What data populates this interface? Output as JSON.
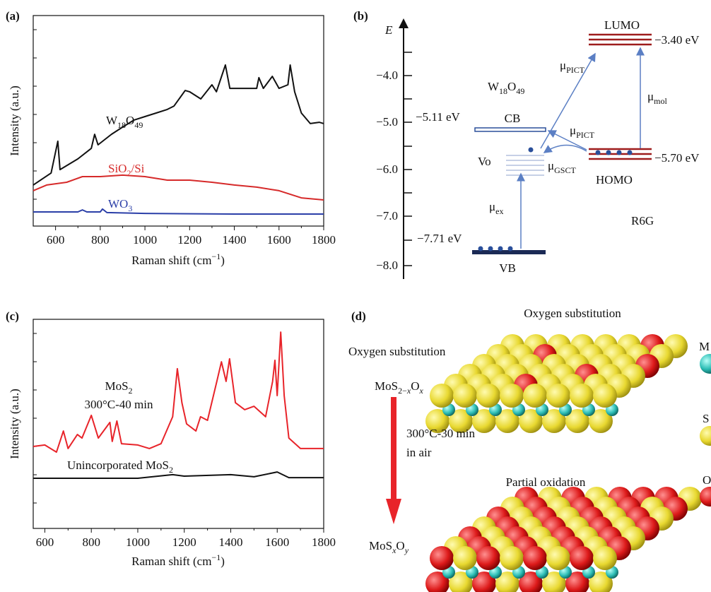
{
  "figure": {
    "panel_labels": [
      "(a)",
      "(b)",
      "(c)",
      "(d)"
    ]
  },
  "chart_data": [
    {
      "type": "line",
      "x_label": [
        "Raman shift (cm",
        "−1",
        ")"
      ],
      "y_label": "Intensity (a.u.)",
      "xlim": [
        500,
        1800
      ],
      "xticks": [
        600,
        800,
        1000,
        1200,
        1400,
        1600,
        1800
      ],
      "ylim": [
        0,
        100
      ],
      "series": [
        {
          "name": [
            "W",
            "18",
            "O",
            "49"
          ],
          "color": "#111111",
          "x": [
            500,
            580,
            610,
            620,
            700,
            760,
            775,
            790,
            850,
            900,
            950,
            1000,
            1050,
            1100,
            1130,
            1180,
            1200,
            1250,
            1300,
            1320,
            1360,
            1380,
            1430,
            1500,
            1510,
            1530,
            1570,
            1600,
            1640,
            1650,
            1670,
            1700,
            1740,
            1780,
            1800
          ],
          "values": [
            19.5,
            25.2,
            40.3,
            26.8,
            31.9,
            36.9,
            43.6,
            38.6,
            43.6,
            47.0,
            50.3,
            52.0,
            53.7,
            55.4,
            57.0,
            64.4,
            63.8,
            60.4,
            67.1,
            63.8,
            76.5,
            65.4,
            65.4,
            65.4,
            70.5,
            65.4,
            71.1,
            65.4,
            67.1,
            76.5,
            63.8,
            53.7,
            48.7,
            49.3,
            48.7
          ]
        },
        {
          "name": [
            "SiO",
            "2",
            "/Si"
          ],
          "color": "#d62a2a",
          "x": [
            500,
            560,
            650,
            720,
            800,
            900,
            1000,
            1100,
            1200,
            1300,
            1400,
            1500,
            1600,
            1700,
            1800
          ],
          "values": [
            16.8,
            19.5,
            20.8,
            23.5,
            23.5,
            24.2,
            23.5,
            21.8,
            21.8,
            20.8,
            19.5,
            18.5,
            16.8,
            13.4,
            12.4
          ]
        },
        {
          "name": [
            "WO",
            "3"
          ],
          "color": "#2b3fa8",
          "x": [
            500,
            700,
            720,
            740,
            800,
            810,
            830,
            1000,
            1400,
            1800
          ],
          "values": [
            6.7,
            6.7,
            7.7,
            6.7,
            6.7,
            8.1,
            6.4,
            6.0,
            5.7,
            5.7
          ]
        }
      ]
    },
    {
      "type": "line",
      "x_label": [
        "Raman shift (cm",
        "−1",
        ")"
      ],
      "y_label": "Intensity (a.u.)",
      "xlim": [
        550,
        1800
      ],
      "xticks": [
        600,
        800,
        1000,
        1200,
        1400,
        1600,
        1800
      ],
      "ylim": [
        0,
        100
      ],
      "series": [
        {
          "name": [
            "MoS",
            "2"
          ],
          "annotation": "300°C-40 min",
          "color": "#e8242a",
          "x": [
            550,
            600,
            650,
            680,
            700,
            740,
            760,
            800,
            830,
            880,
            890,
            910,
            930,
            1000,
            1050,
            1100,
            1150,
            1170,
            1190,
            1210,
            1250,
            1270,
            1300,
            1340,
            1360,
            1380,
            1395,
            1420,
            1460,
            1500,
            1550,
            1580,
            1590,
            1600,
            1615,
            1630,
            1650,
            1700,
            1750,
            1800
          ],
          "values": [
            39.2,
            39.9,
            36.5,
            46.6,
            38.2,
            44.9,
            43.2,
            54.1,
            43.2,
            50.7,
            41.6,
            51.4,
            40.5,
            39.9,
            38.2,
            40.5,
            53.4,
            76.4,
            60.1,
            50.0,
            46.6,
            53.4,
            51.7,
            70.3,
            79.7,
            70.3,
            81.1,
            60.1,
            56.8,
            58.4,
            53.4,
            70.3,
            80.4,
            63.5,
            93.9,
            63.5,
            43.2,
            38.2,
            38.2,
            38.2
          ]
        },
        {
          "name": [
            "Unincorporated MoS",
            "2"
          ],
          "color": "#111111",
          "x": [
            550,
            1000,
            1150,
            1200,
            1400,
            1500,
            1600,
            1650,
            1800
          ],
          "values": [
            24.0,
            24.0,
            25.7,
            25.0,
            25.7,
            24.7,
            27.0,
            24.3,
            24.3
          ]
        }
      ]
    }
  ],
  "energy_diagram": {
    "axis_label": "E",
    "axis_ticks": [
      "−4.0",
      "−5.0",
      "−6.0",
      "−7.0",
      "−8.0"
    ],
    "material": [
      "W",
      "18",
      "O",
      "49"
    ],
    "molecule": "R6G",
    "lumo": "LUMO",
    "lumo_energy": "−3.40 eV",
    "homo": "HOMO",
    "homo_energy": "−5.70 eV",
    "cb": "CB",
    "cb_energy": "−5.11 eV",
    "vb": "VB",
    "vb_energy": "−7.71 eV",
    "vacancy": "Vo",
    "transitions": {
      "pict_upper": [
        "μ",
        "PICT"
      ],
      "pict_lower": [
        "μ",
        "PICT"
      ],
      "mol": [
        "μ",
        "mol"
      ],
      "gsct": [
        "μ",
        "GSCT"
      ],
      "ex": [
        "μ",
        "ex"
      ]
    }
  },
  "schematic": {
    "top_title": "Oxygen substitution",
    "step": "Oxygen substitution",
    "product1": [
      "MoS",
      "2−",
      "x",
      "O",
      "x"
    ],
    "condition": [
      "300°C-30 min",
      "in air"
    ],
    "bottom_title": "Partial oxidation",
    "product2": [
      "MoS",
      "x",
      "O",
      "y"
    ],
    "legend": [
      "M",
      "S",
      "O"
    ]
  }
}
